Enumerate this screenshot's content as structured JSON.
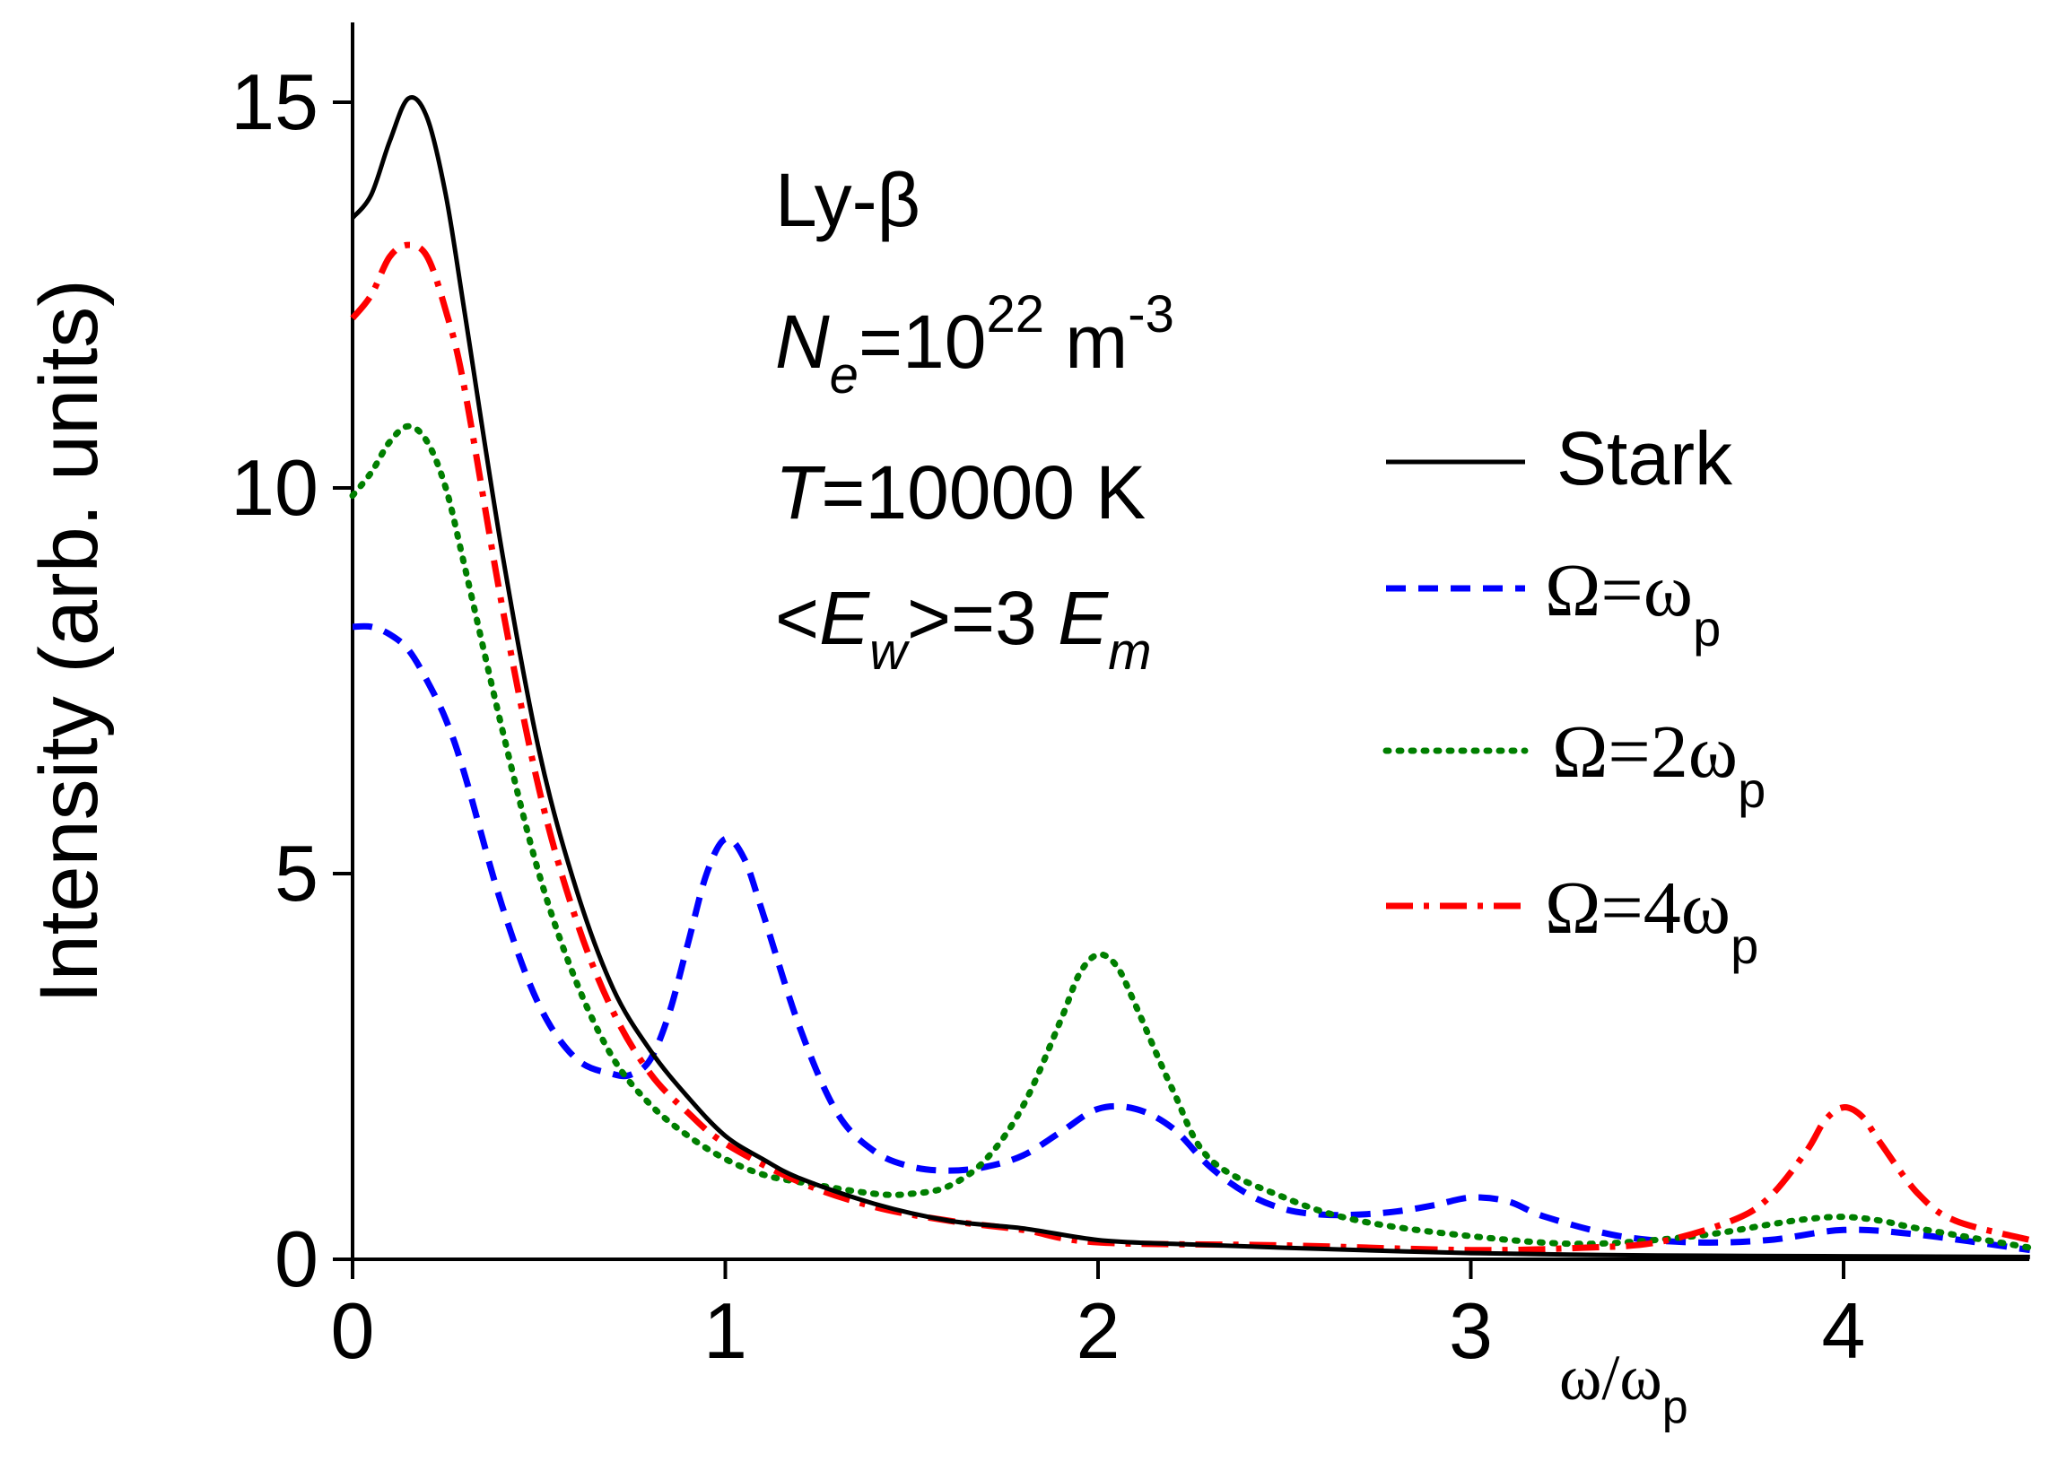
{
  "chart_data": {
    "type": "line",
    "title": "",
    "xlabel": {
      "base": "ω/ω",
      "sub": "p"
    },
    "ylabel": "Intensity (arb. units)",
    "xlim": [
      0,
      4.5
    ],
    "ylim": [
      0,
      16
    ],
    "x_ticks": [
      0,
      1,
      2,
      3,
      4
    ],
    "y_ticks": [
      0,
      5,
      10,
      15
    ],
    "x_tick_labels": [
      "0",
      "1",
      "2",
      "3",
      "4"
    ],
    "y_tick_labels": [
      "0",
      "5",
      "10",
      "15"
    ],
    "grid": false,
    "legend_position": "right",
    "annotation": {
      "line1": "Ly-β",
      "line2": {
        "N": "N",
        "e": "e",
        "mid": "=10",
        "exp": "22",
        "unit": " m",
        "uexp": "-3"
      },
      "line3": {
        "T": "T",
        "rest": "=10000 K"
      },
      "line4": {
        "open": "<",
        "E": "E",
        "w": "w",
        "mid": ">=3 ",
        "E2": "E",
        "m": "m"
      }
    },
    "series": [
      {
        "name": "Stark",
        "legend_label": "Stark",
        "color": "#000000",
        "dash": "solid",
        "x": [
          0,
          0.05,
          0.1,
          0.15,
          0.2,
          0.25,
          0.3,
          0.4,
          0.5,
          0.6,
          0.7,
          0.8,
          0.9,
          1.0,
          1.1,
          1.2,
          1.4,
          1.6,
          1.8,
          2.0,
          2.2,
          2.5,
          3.0,
          3.5,
          4.0,
          4.5
        ],
        "values": [
          13.5,
          13.8,
          14.5,
          15.05,
          14.8,
          13.8,
          12.3,
          9.2,
          6.6,
          4.8,
          3.5,
          2.7,
          2.1,
          1.6,
          1.3,
          1.05,
          0.72,
          0.5,
          0.4,
          0.25,
          0.2,
          0.15,
          0.08,
          0.05,
          0.04,
          0.03
        ]
      },
      {
        "name": "Ω=ωp",
        "legend_label": {
          "base": "Ω=ω",
          "sub": "p"
        },
        "color": "#0000ff",
        "dash": "dashed",
        "x": [
          0,
          0.05,
          0.1,
          0.15,
          0.2,
          0.25,
          0.3,
          0.4,
          0.5,
          0.6,
          0.7,
          0.75,
          0.8,
          0.85,
          0.9,
          0.95,
          1.0,
          1.05,
          1.1,
          1.2,
          1.3,
          1.4,
          1.5,
          1.6,
          1.7,
          1.8,
          1.9,
          2.0,
          2.1,
          2.2,
          2.3,
          2.4,
          2.5,
          2.6,
          2.7,
          2.8,
          2.9,
          3.0,
          3.1,
          3.2,
          3.4,
          3.6,
          3.8,
          4.0,
          4.2,
          4.5
        ],
        "values": [
          8.2,
          8.2,
          8.1,
          7.9,
          7.5,
          7.0,
          6.3,
          4.6,
          3.3,
          2.6,
          2.4,
          2.4,
          2.6,
          3.2,
          4.1,
          5.0,
          5.45,
          5.2,
          4.5,
          3.0,
          1.9,
          1.4,
          1.2,
          1.15,
          1.2,
          1.35,
          1.65,
          1.95,
          1.95,
          1.7,
          1.2,
          0.85,
          0.65,
          0.58,
          0.58,
          0.62,
          0.7,
          0.8,
          0.75,
          0.55,
          0.3,
          0.22,
          0.25,
          0.38,
          0.32,
          0.12
        ]
      },
      {
        "name": "Ω=2ωp",
        "legend_label": {
          "base": "Ω=2ω",
          "sub": "p"
        },
        "color": "#007f00",
        "dash": "dotted",
        "x": [
          0,
          0.05,
          0.1,
          0.15,
          0.2,
          0.25,
          0.3,
          0.4,
          0.5,
          0.6,
          0.7,
          0.8,
          0.9,
          1.0,
          1.1,
          1.2,
          1.4,
          1.5,
          1.6,
          1.7,
          1.8,
          1.9,
          1.95,
          2.0,
          2.05,
          2.1,
          2.2,
          2.3,
          2.5,
          2.7,
          3.0,
          3.3,
          3.6,
          3.8,
          3.9,
          4.0,
          4.1,
          4.2,
          4.5
        ],
        "values": [
          9.9,
          10.2,
          10.6,
          10.8,
          10.6,
          10.0,
          9.0,
          6.9,
          5.0,
          3.6,
          2.6,
          2.0,
          1.6,
          1.3,
          1.1,
          1.0,
          0.85,
          0.85,
          0.95,
          1.3,
          2.0,
          3.1,
          3.7,
          3.95,
          3.8,
          3.3,
          2.2,
          1.3,
          0.8,
          0.5,
          0.3,
          0.2,
          0.3,
          0.45,
          0.52,
          0.55,
          0.5,
          0.4,
          0.15
        ]
      },
      {
        "name": "Ω=4ωp",
        "legend_label": {
          "base": "Ω=4ω",
          "sub": "p"
        },
        "color": "#ff0000",
        "dash": "dashdot",
        "x": [
          0,
          0.05,
          0.1,
          0.15,
          0.2,
          0.25,
          0.3,
          0.4,
          0.5,
          0.6,
          0.7,
          0.8,
          0.9,
          1.0,
          1.2,
          1.4,
          1.6,
          1.8,
          2.0,
          2.5,
          3.0,
          3.3,
          3.5,
          3.7,
          3.8,
          3.9,
          3.95,
          4.0,
          4.05,
          4.1,
          4.2,
          4.3,
          4.5
        ],
        "values": [
          12.2,
          12.5,
          13.0,
          13.15,
          13.0,
          12.3,
          11.3,
          8.5,
          6.1,
          4.4,
          3.2,
          2.4,
          1.9,
          1.5,
          1.0,
          0.68,
          0.5,
          0.38,
          0.22,
          0.18,
          0.12,
          0.15,
          0.22,
          0.5,
          0.8,
          1.4,
          1.8,
          1.97,
          1.85,
          1.5,
          0.85,
          0.5,
          0.25
        ]
      }
    ]
  }
}
